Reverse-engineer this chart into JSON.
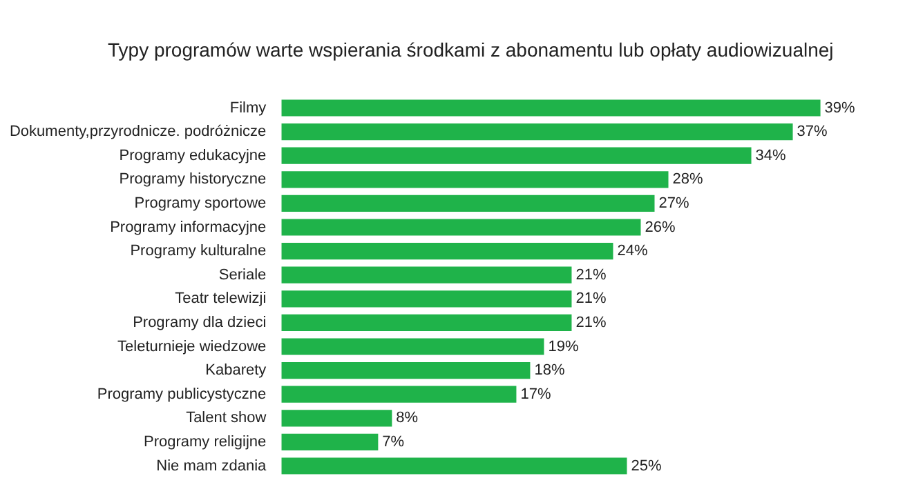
{
  "chart_data": {
    "type": "bar",
    "orientation": "horizontal",
    "title": "Typy programów warte wspierania środkami z abonamentu lub opłaty audiowizualnej",
    "categories": [
      "Filmy",
      "Dokumenty,przyrodnicze. podróżnicze",
      "Programy edukacyjne",
      "Programy historyczne",
      "Programy sportowe",
      "Programy informacyjne",
      "Programy kulturalne",
      "Seriale",
      "Teatr telewizji",
      "Programy dla dzieci",
      "Teleturnieje wiedzowe",
      "Kabarety",
      "Programy publicystyczne",
      "Talent show",
      "Programy religijne",
      "Nie mam zdania"
    ],
    "values": [
      39,
      37,
      34,
      28,
      27,
      26,
      24,
      21,
      21,
      21,
      19,
      18,
      17,
      8,
      7,
      25
    ],
    "value_labels": [
      "39%",
      "37%",
      "34%",
      "28%",
      "27%",
      "26%",
      "24%",
      "21%",
      "21%",
      "21%",
      "19%",
      "18%",
      "17%",
      "8%",
      "7%",
      "25%"
    ],
    "color": "#1fb34a",
    "legend": false
  }
}
